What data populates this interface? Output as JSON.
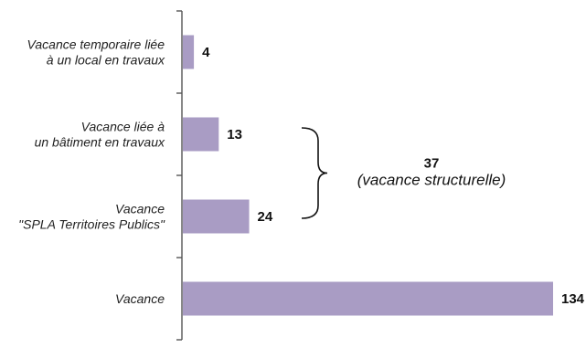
{
  "chart_data": {
    "type": "bar",
    "orientation": "horizontal",
    "title": "",
    "xlabel": "",
    "ylabel": "",
    "categories": [
      [
        "Vacance temporaire liée",
        "à un local en travaux"
      ],
      [
        "Vacance liée à",
        "un bâtiment en travaux"
      ],
      [
        "Vacance",
        "\"SPLA Territoires Publics\""
      ],
      [
        "Vacance"
      ]
    ],
    "values": [
      4,
      13,
      24,
      134
    ],
    "xlim": [
      0,
      134
    ],
    "grid": false,
    "legend": "none",
    "bar_color": "#a99cc4",
    "annotation": {
      "value_label": "37",
      "text": "(vacance structurelle)",
      "spans_categories": [
        1,
        2
      ]
    }
  }
}
